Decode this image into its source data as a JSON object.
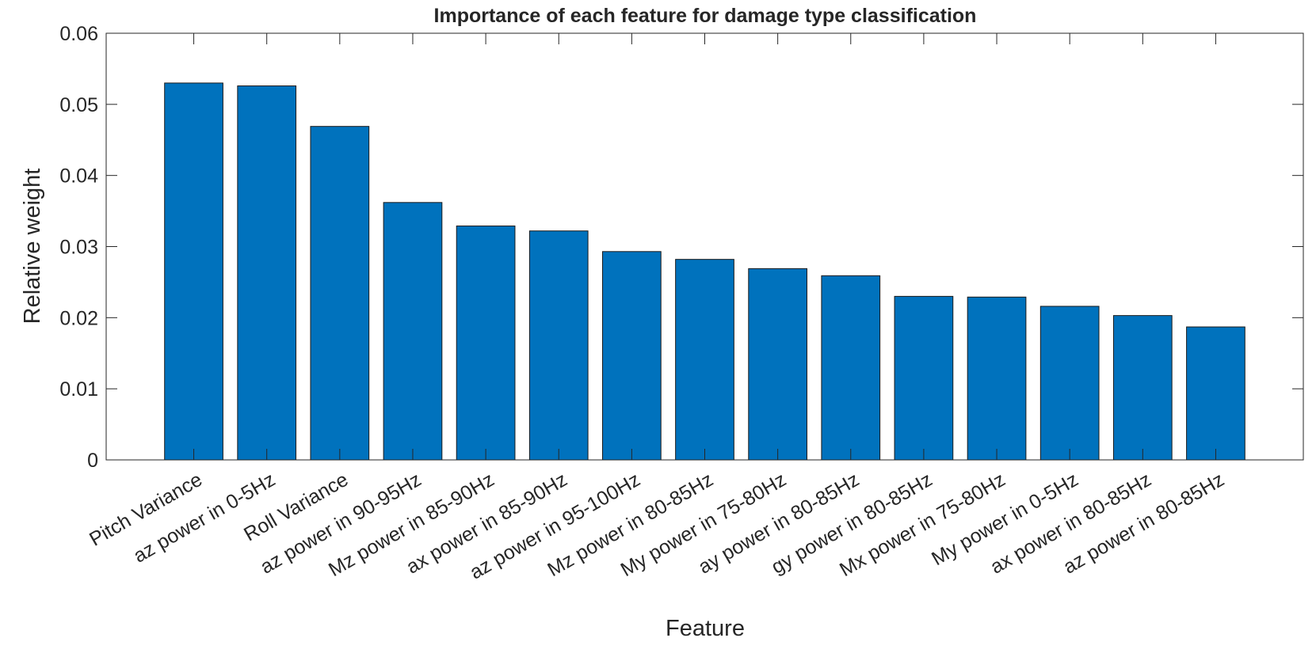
{
  "chart_data": {
    "type": "bar",
    "title": "Importance of each feature for damage type classification",
    "xlabel": "Feature",
    "ylabel": "Relative weight",
    "categories": [
      "Pitch Variance",
      "az power in 0-5Hz",
      "Roll Variance",
      "az power in 90-95Hz",
      "Mz power in 85-90Hz",
      "ax power in 85-90Hz",
      "az power in 95-100Hz",
      "Mz power in 80-85Hz",
      "My power in 75-80Hz",
      "ay power in 80-85Hz",
      "gy power in 80-85Hz",
      "Mx power in 75-80Hz",
      "My power in 0-5Hz",
      "ax power in 80-85Hz",
      "az power in 80-85Hz"
    ],
    "values": [
      0.053,
      0.0526,
      0.0469,
      0.0362,
      0.0329,
      0.0322,
      0.0293,
      0.0282,
      0.0269,
      0.0259,
      0.023,
      0.0229,
      0.0216,
      0.0203,
      0.0187
    ],
    "color": "#0072bd",
    "ylim": [
      0,
      0.06
    ],
    "yticks": [
      0,
      0.01,
      0.02,
      0.03,
      0.04,
      0.05,
      0.06
    ]
  }
}
